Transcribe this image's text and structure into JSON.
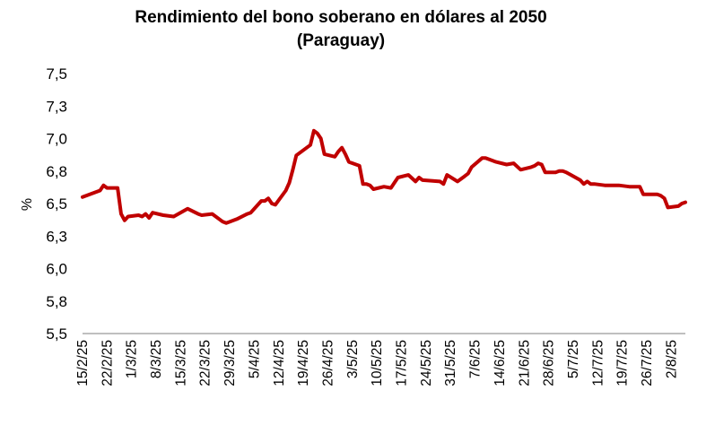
{
  "chart_data": {
    "type": "line",
    "title_lines": [
      "Rendimiento del bono soberano en dólares al 2050",
      "(Paraguay)"
    ],
    "ylabel": "%",
    "xlabel": "",
    "ylim": [
      5.5,
      7.5
    ],
    "ytick_labels": [
      "7,5",
      "7,3",
      "7,0",
      "6,8",
      "6,5",
      "6,3",
      "6,0",
      "5,8",
      "5,5"
    ],
    "xtick_labels": [
      "15/2/25",
      "22/2/25",
      "1/3/25",
      "8/3/25",
      "15/3/25",
      "22/3/25",
      "29/3/25",
      "5/4/25",
      "12/4/25",
      "19/4/25",
      "26/4/25",
      "3/5/25",
      "10/5/25",
      "17/5/25",
      "24/5/25",
      "31/5/25",
      "7/6/25",
      "14/6/25",
      "21/6/25",
      "28/6/25",
      "5/7/25",
      "12/7/25",
      "19/7/25",
      "26/7/25",
      "2/8/25"
    ],
    "grid": false,
    "legend": "none",
    "line_color": "#c00000",
    "series": [
      {
        "x": [
          "15/2/25",
          "20/2/25",
          "21/2/25",
          "22/2/25",
          "25/2/25",
          "26/2/25",
          "27/2/25",
          "28/2/25",
          "3/3/25",
          "4/3/25",
          "5/3/25",
          "6/3/25",
          "7/3/25",
          "10/3/25",
          "13/3/25",
          "17/3/25",
          "20/3/25",
          "21/3/25",
          "24/3/25",
          "27/3/25",
          "28/3/25",
          "31/3/25",
          "3/4/25",
          "4/4/25",
          "7/4/25",
          "8/4/25",
          "9/4/25",
          "10/4/25",
          "11/4/25",
          "14/4/25",
          "15/4/25",
          "16/4/25",
          "17/4/25",
          "21/4/25",
          "22/4/25",
          "23/4/25",
          "24/4/25",
          "25/4/25",
          "28/4/25",
          "29/4/25",
          "30/4/25",
          "1/5/25",
          "2/5/25",
          "5/5/25",
          "6/5/25",
          "7/5/25",
          "8/5/25",
          "9/5/25",
          "12/5/25",
          "14/5/25",
          "15/5/25",
          "16/5/25",
          "19/5/25",
          "21/5/25",
          "22/5/25",
          "23/5/25",
          "28/5/25",
          "29/5/25",
          "30/5/25",
          "2/6/25",
          "4/6/25",
          "5/6/25",
          "6/6/25",
          "9/6/25",
          "10/6/25",
          "13/6/25",
          "16/6/25",
          "18/6/25",
          "20/6/25",
          "23/6/25",
          "24/6/25",
          "25/6/25",
          "26/6/25",
          "27/6/25",
          "30/6/25",
          "1/7/25",
          "2/7/25",
          "3/7/25",
          "7/7/25",
          "8/7/25",
          "9/7/25",
          "10/7/25",
          "11/7/25",
          "14/7/25",
          "15/7/25",
          "16/7/25",
          "18/7/25",
          "21/7/25",
          "24/7/25",
          "25/7/25",
          "28/7/25",
          "29/7/25",
          "30/7/25",
          "31/7/25",
          "1/8/25",
          "4/8/25",
          "5/8/25",
          "6/8/25"
        ],
        "y": [
          6.55,
          6.6,
          6.64,
          6.62,
          6.62,
          6.42,
          6.37,
          6.4,
          6.41,
          6.4,
          6.42,
          6.39,
          6.43,
          6.41,
          6.4,
          6.46,
          6.42,
          6.41,
          6.42,
          6.36,
          6.35,
          6.38,
          6.42,
          6.43,
          6.52,
          6.52,
          6.54,
          6.5,
          6.49,
          6.6,
          6.66,
          6.76,
          6.87,
          6.95,
          7.06,
          7.04,
          7.0,
          6.88,
          6.86,
          6.9,
          6.93,
          6.88,
          6.82,
          6.79,
          6.65,
          6.65,
          6.64,
          6.61,
          6.63,
          6.62,
          6.66,
          6.7,
          6.72,
          6.67,
          6.7,
          6.68,
          6.67,
          6.65,
          6.72,
          6.67,
          6.71,
          6.73,
          6.78,
          6.85,
          6.85,
          6.82,
          6.8,
          6.81,
          6.76,
          6.78,
          6.79,
          6.81,
          6.8,
          6.74,
          6.74,
          6.75,
          6.75,
          6.74,
          6.68,
          6.65,
          6.67,
          6.65,
          6.65,
          6.64,
          6.64,
          6.64,
          6.64,
          6.63,
          6.63,
          6.57,
          6.57,
          6.57,
          6.56,
          6.54,
          6.47,
          6.48,
          6.5,
          6.51
        ]
      }
    ]
  }
}
